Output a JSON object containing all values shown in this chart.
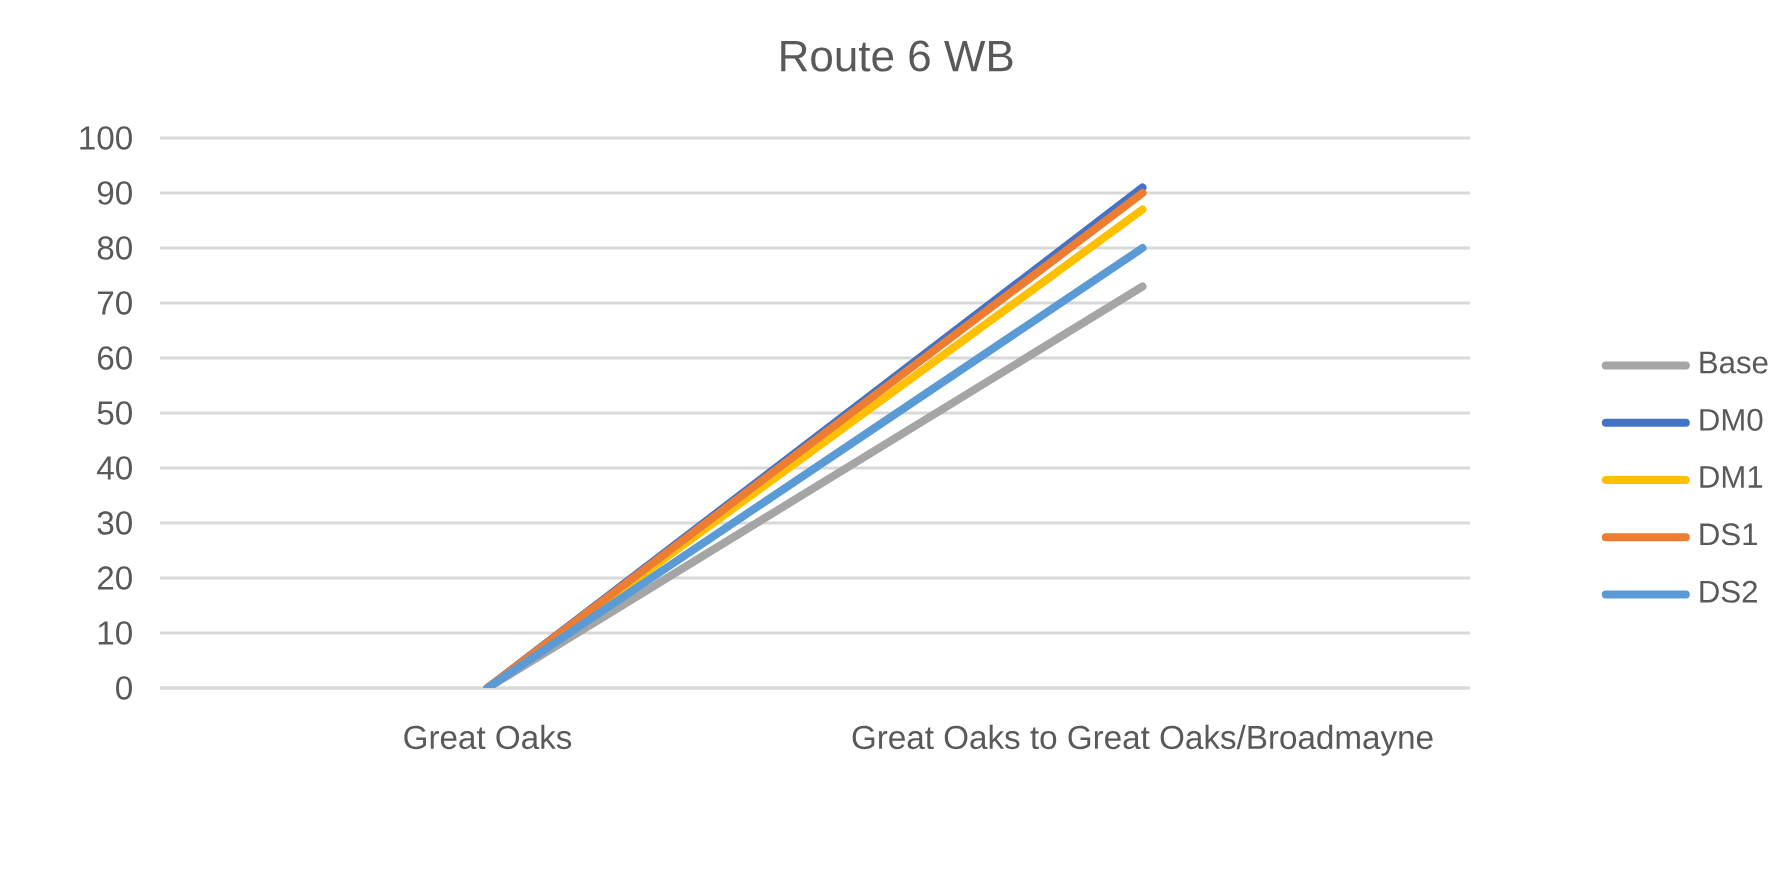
{
  "chart_data": {
    "type": "line",
    "title": "Route 6 WB",
    "categories": [
      "Great Oaks",
      "Great Oaks to Great Oaks/Broadmayne"
    ],
    "series": [
      {
        "name": "Base",
        "color": "#a5a5a5",
        "values": [
          0,
          73
        ]
      },
      {
        "name": "DM0",
        "color": "#4472c4",
        "values": [
          0,
          91
        ]
      },
      {
        "name": "DM1",
        "color": "#ffc000",
        "values": [
          0,
          87
        ]
      },
      {
        "name": "DS1",
        "color": "#ed7d31",
        "values": [
          0,
          90
        ]
      },
      {
        "name": "DS2",
        "color": "#5b9bd5",
        "values": [
          0,
          80
        ]
      }
    ],
    "ylim": [
      0,
      100
    ],
    "yticks": [
      0,
      10,
      20,
      30,
      40,
      50,
      60,
      70,
      80,
      90,
      100
    ],
    "grid": "y",
    "legend": "right"
  }
}
